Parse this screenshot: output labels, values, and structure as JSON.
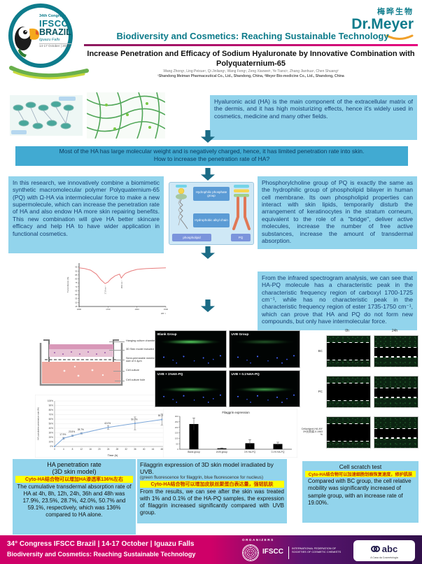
{
  "header": {
    "badge": {
      "line1": "34th Congress",
      "line2": "IFSCC",
      "line3": "BRAZIL",
      "line4": "Iguazu Falls",
      "line5": "14-17 October | 2024"
    },
    "brand": {
      "chinese": "梅晔生物",
      "name": "Dr.Meyer"
    },
    "session_title": "Biodiversity and Cosmetics: Reaching Sustainable Technology",
    "poster_title": "Increase Penetration and Efficacy of Sodium Hyaluronate by Innovative Combination with Polyquaternium-65",
    "authors": "Wang Zhong¹, Ling Peixue¹, Qi Jinliang¹, Wang Feng¹, Zeng Xiaowei¹, Ye Tianci¹, Zhang Jianhua¹, Chen Shuang²",
    "affiliations": "¹Shandong Meiman Pharmaceutical Co., Ltd., Shandong, China, ²Meyer Bio-medicine Co., Ltd., Shandong, China"
  },
  "intro": {
    "box": "Hyaluronic acid (HA) is the main component of the extracellular matrix of the dermis, and it has high moisturizing effects, hence it's widely used in cosmetics, medicine and many other fields.",
    "banner_line1": "Most of the HA has large molecular weight and is negatively charged, hence, it has limited penetration rate into skin.",
    "banner_line2": "How to increase the penetration rate of HA?"
  },
  "research": {
    "left_box": "In this research, we innovatively combine a biomimetic synthetic macromolecular polymer Polyquaternium-65 (PQ) with Ω-HA via intermolecular force to make a new supermolecule, which can increase the penetration rate of HA and also endow HA more skin repairing benefits. This new combination will give HA better skincare efficacy and help HA to have wider application in functional cosmetics.",
    "diagram": {
      "label_top": "Hydrophilic phosphate group",
      "label_bottom": "Hydrophobic alkyl chain",
      "caption_left": "phospholipid",
      "caption_right": "PQ"
    },
    "right_box": "Phosphorylcholine group of PQ is exactly the same as the hydrophilic group of phospholipid bilayer in human cell membrane. Its own phospholipid properties can interact with skin lipids, temporarily disturb the arrangement of keratinocytes in the stratum corneum, equivalent to the role of a \"bridge\", deliver active molecules, increase the number of free active substances, increase the amount of transdermal absorption.",
    "ir_box": "From the infrared spectrogram analysis, we can see that HA-PQ molecule has a characteristic peak in the characteristic frequency region of carboxyl 1700-1725 cm⁻¹, while has no characteristic peak in the characteristic frequency region of ester 1735-1750 cm⁻¹, which can prove that HA and PQ do not form new compounds, but only have intermolecular force."
  },
  "results": {
    "skin_model": {
      "labels": [
        "Hanging culture chamber",
        "3D Skin model included",
        "Semi-permeable membrane with a pore size of 0.4μm",
        "Cell culture",
        "Cell culture hole"
      ]
    },
    "fluorescence": {
      "labels": [
        "Blank Group",
        "UVB Group",
        "UVB + 1%HA-PQ",
        "UVB + 0.1%HA-PQ"
      ]
    },
    "scratch": {
      "col_headers": [
        "0h",
        "24h"
      ],
      "row_labels": [
        "BC",
        "PC",
        "Cellpolypol-HA-MY 3%无防腐-0.1963 %"
      ]
    }
  },
  "captions": {
    "left": {
      "title": "HA penetration rate",
      "subtitle": "(3D skin model)",
      "highlight": "Cyto-HA结合物可以增加HA渗透率136%左右",
      "body": "The cumulative transdermal absorption rate of HA at 4h, 8h, 12h, 24h, 36h and 48h was 17.9%, 23.5%, 28.7%, 42.0%, 50.7% and 59.1%, respectively, which was 136% compared to HA alone."
    },
    "middle": {
      "title": "Filaggrin expression of 3D skin model irradiated by UVB.",
      "subtitle": "(green fluorescence for filaggrin, blue fluorescence for nucleus)",
      "highlight": "Cyto-HA结合物可以增加皮肤丝聚蛋白表达量，强韧肌肤",
      "body": "From the results, we can see after the skin was treated with 1% and 0.1% of the HA-PQ samples, the expression of filaggrin increased significantly compared with UVB group."
    },
    "right": {
      "title": "Cell scratch test",
      "highlight": "Cyto-HA结合物可以加速细胞划痕恢复速度，修护肌肤",
      "body": "Compared with BC group, the cell relative mobility was significantly increased of sample group, with an increase rate of 19.00%."
    }
  },
  "footer": {
    "line1": "34° Congress IFSCC Brazil | 14-17 October | Iguazu Falls",
    "line2": "Biodiversity and Cosmetics: Reaching Sustainable Technology",
    "organizers": "ORGANIZERS",
    "ifscc_name": "IFSCC",
    "ifscc_full": "INTERNATIONAL FEDERATION OF SOCIETIES OF COSMETIC CHEMISTS",
    "abc_name": "abc",
    "abc_sub": "A Casa da Cosmetologia"
  },
  "colors": {
    "teal": "#0e7c8c",
    "magenta": "#e6007e",
    "box_blue": "#92d4ec",
    "banner_blue": "#41aad2",
    "arrow": "#1b6b85",
    "footer_magenta": "#cf0068",
    "footer_purple": "#31104a",
    "highlight_yellow": "#ffff00"
  },
  "chart_data": [
    {
      "id": "ir_spectrum",
      "type": "line",
      "title": "",
      "xlabel": "cm⁻¹",
      "ylabel": "Transmittance (%)",
      "x": [
        1800,
        1780,
        1760,
        1740,
        1725,
        1710,
        1700,
        1690,
        1675,
        1660,
        1654,
        1648,
        1640,
        1620,
        1600,
        1570,
        1540,
        1500
      ],
      "y": [
        94,
        93,
        91,
        86,
        79,
        74,
        76,
        80,
        84,
        86,
        81,
        84,
        87,
        90,
        92,
        93,
        93.5,
        94
      ],
      "xticks": [
        1800,
        1700,
        1600,
        1500
      ],
      "yticks": [
        45,
        50,
        55,
        60,
        65,
        70,
        75,
        80,
        85,
        90,
        95
      ],
      "annotations": [
        {
          "x": 1710,
          "y": 74,
          "label": "1710 cm⁻¹"
        },
        {
          "x": 1654,
          "y": 81,
          "label": "1654 cm⁻¹"
        }
      ],
      "xlim": [
        1800,
        1500
      ],
      "ylim": [
        45,
        100
      ],
      "line_color": "#e87d7d",
      "grid": false
    },
    {
      "id": "ha_penetration",
      "type": "line",
      "title": "",
      "xlabel": "Time (h)",
      "ylabel": "HA cumulative penetration rate (%)",
      "x": [
        0,
        4,
        8,
        12,
        24,
        36,
        48
      ],
      "y": [
        0,
        17.9,
        23.5,
        28.7,
        42.0,
        50.7,
        59.1
      ],
      "err": [
        0,
        2,
        1.5,
        1.5,
        4,
        14,
        12
      ],
      "point_labels": [
        "",
        "17.9%",
        "23.5%",
        "28.7%",
        "42.0%",
        "50.7%",
        "59.1%"
      ],
      "xticks": [
        0,
        4,
        8,
        12,
        16,
        20,
        24,
        28,
        32,
        36,
        40,
        44,
        48,
        52
      ],
      "xlim": [
        0,
        52
      ],
      "ylim": [
        0,
        100
      ],
      "line_color": "#7da7d9",
      "grid": true
    },
    {
      "id": "filaggrin",
      "type": "bar",
      "title": "Filaggrin expression",
      "categories": [
        "Blank group",
        "UVB group",
        "1% HA-PQ",
        "0.1% HA-PQ"
      ],
      "values": [
        230,
        8,
        55,
        48
      ],
      "errors": [
        55,
        4,
        33,
        16
      ],
      "yticks": [
        0,
        50,
        100,
        150,
        200,
        250,
        300
      ],
      "ylim": [
        0,
        300
      ],
      "bar_color": "#000000",
      "grid": false
    }
  ]
}
